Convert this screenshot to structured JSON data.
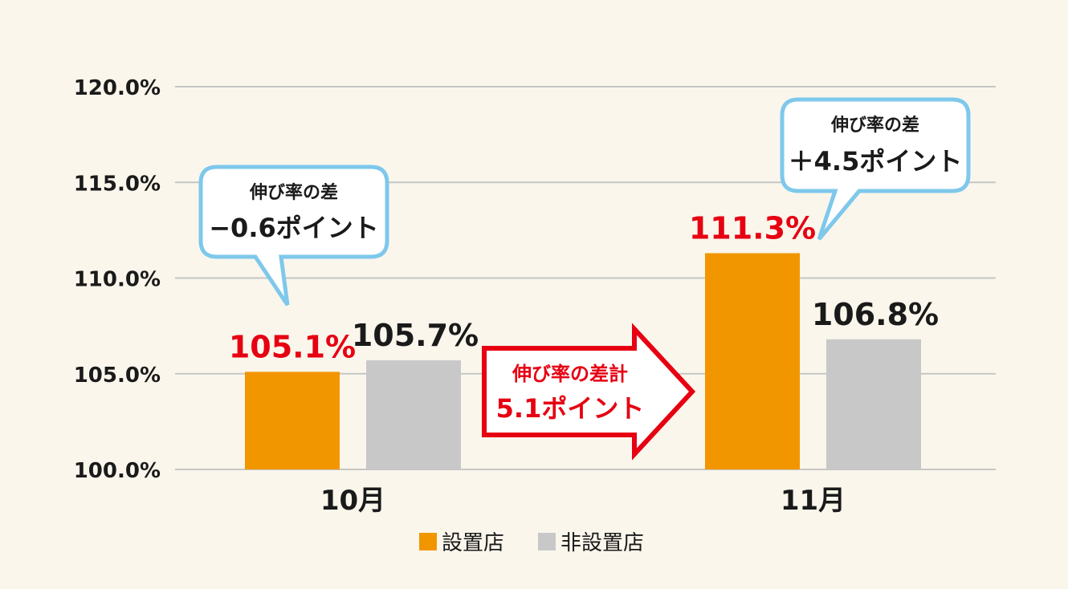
{
  "chart_data": {
    "type": "bar",
    "categories": [
      "10月",
      "11月"
    ],
    "series": [
      {
        "name": "設置店",
        "values": [
          105.1,
          111.3
        ],
        "color": "#F29600"
      },
      {
        "name": "非設置店",
        "values": [
          105.7,
          106.8
        ],
        "color": "#C8C8C8"
      }
    ],
    "value_labels": [
      [
        "105.1%",
        "111.3%"
      ],
      [
        "105.7%",
        "106.8%"
      ]
    ],
    "value_label_colors": [
      "#E60012",
      "#1a1a1a"
    ],
    "y_ticks": [
      "100.0%",
      "105.0%",
      "110.0%",
      "115.0%",
      "120.0%"
    ],
    "ylim": [
      100,
      120
    ],
    "grid": true,
    "legend_position": "bottom-center"
  },
  "callouts": [
    {
      "line1": "伸び率の差",
      "line2": "−0.6ポイント",
      "border_color": "#7EC8EB"
    },
    {
      "line1": "伸び率の差",
      "line2": "＋4.5ポイント",
      "border_color": "#7EC8EB"
    }
  ],
  "arrow": {
    "line1": "伸び率の差計",
    "line2": "5.1ポイント",
    "color": "#E60012"
  }
}
